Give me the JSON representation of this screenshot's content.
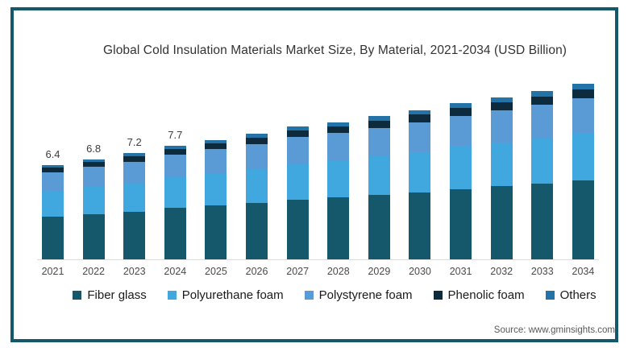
{
  "title": "Global Cold Insulation Materials Market Size, By Material, 2021-2034 (USD Billion)",
  "source": "Source: www.gminsights.com",
  "colors": {
    "frame": "#14596b",
    "fiber_glass": "#15586b",
    "polyurethane_foam": "#41a8df",
    "polystyrene_foam": "#5b9bd5",
    "phenolic_foam": "#0d2b3d",
    "others": "#2173a8",
    "baseline": "#dcdcdc",
    "title_text": "#333333",
    "axis_text": "#4a4a4a"
  },
  "chart_data": {
    "type": "bar",
    "stacked": true,
    "title": "Global Cold Insulation Materials Market Size, By Material, 2021-2034 (USD Billion)",
    "xlabel": "",
    "ylabel": "USD Billion",
    "ylim": [
      0,
      13
    ],
    "grid": false,
    "legend_position": "bottom",
    "categories": [
      "2021",
      "2022",
      "2023",
      "2024",
      "2025",
      "2026",
      "2027",
      "2028",
      "2029",
      "2030",
      "2031",
      "2032",
      "2033",
      "2034"
    ],
    "totals": [
      6.4,
      6.8,
      7.2,
      7.7,
      8.1,
      8.5,
      9.0,
      9.3,
      9.7,
      10.1,
      10.6,
      11.0,
      11.4,
      11.9
    ],
    "total_labels": [
      "6.4",
      "6.8",
      "7.2",
      "7.7",
      "",
      "",
      "",
      "",
      "",
      "",
      "",
      "",
      "",
      ""
    ],
    "series": [
      {
        "name": "Fiber glass",
        "color": "#15586b",
        "values": [
          2.88,
          3.06,
          3.24,
          3.47,
          3.65,
          3.83,
          4.05,
          4.19,
          4.37,
          4.55,
          4.77,
          4.95,
          5.13,
          5.36
        ]
      },
      {
        "name": "Polyurethane foam",
        "color": "#41a8df",
        "values": [
          1.73,
          1.84,
          1.94,
          2.08,
          2.19,
          2.3,
          2.43,
          2.51,
          2.62,
          2.73,
          2.86,
          2.97,
          3.08,
          3.21
        ]
      },
      {
        "name": "Polystyrene foam",
        "color": "#5b9bd5",
        "values": [
          1.28,
          1.36,
          1.44,
          1.54,
          1.62,
          1.7,
          1.8,
          1.86,
          1.94,
          2.02,
          2.12,
          2.2,
          2.28,
          2.38
        ]
      },
      {
        "name": "Phenolic foam",
        "color": "#0d2b3d",
        "values": [
          0.32,
          0.34,
          0.36,
          0.39,
          0.41,
          0.43,
          0.45,
          0.47,
          0.49,
          0.51,
          0.53,
          0.55,
          0.57,
          0.6
        ]
      },
      {
        "name": "Others",
        "color": "#2173a8",
        "values": [
          0.19,
          0.2,
          0.22,
          0.23,
          0.24,
          0.26,
          0.27,
          0.28,
          0.29,
          0.3,
          0.32,
          0.33,
          0.34,
          0.36
        ]
      }
    ]
  }
}
